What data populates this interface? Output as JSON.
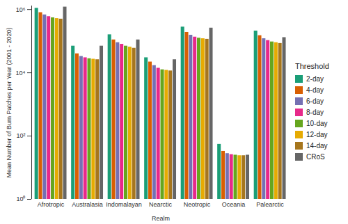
{
  "chart_data": {
    "type": "bar",
    "x_label": "Realm",
    "y_label": "Mean Number of Burn Patches per Year (2001 - 2020)",
    "legend_title": "Threshold",
    "categories": [
      "Afrotropic",
      "Australasia",
      "Indomalayan",
      "Nearctic",
      "Neotropic",
      "Oceania",
      "Palearctic"
    ],
    "series": [
      {
        "name": "2-day",
        "color": "#1b9e77",
        "values": [
          1100000,
          70000,
          160000,
          30000,
          280000,
          55,
          210000
        ]
      },
      {
        "name": "4-day",
        "color": "#d95f02",
        "values": [
          800000,
          40000,
          110000,
          22000,
          190000,
          33,
          150000
        ]
      },
      {
        "name": "6-day",
        "color": "#7570b3",
        "values": [
          680000,
          33000,
          90000,
          17000,
          155000,
          28,
          120000
        ]
      },
      {
        "name": "8-day",
        "color": "#e7298a",
        "values": [
          600000,
          30000,
          80000,
          14000,
          135000,
          26,
          105000
        ]
      },
      {
        "name": "10-day",
        "color": "#66a61e",
        "values": [
          550000,
          28000,
          70000,
          12500,
          125000,
          25,
          95000
        ]
      },
      {
        "name": "12-day",
        "color": "#e6ab02",
        "values": [
          520000,
          27000,
          65000,
          12000,
          120000,
          24,
          90000
        ]
      },
      {
        "name": "14-day",
        "color": "#a6761d",
        "values": [
          500000,
          26000,
          60000,
          11500,
          115000,
          24,
          85000
        ]
      },
      {
        "name": "CRoS",
        "color": "#666666",
        "values": [
          1200000,
          70000,
          110000,
          26000,
          260000,
          25,
          130000
        ]
      }
    ],
    "log": "y",
    "ylim": [
      1,
      1300000
    ],
    "yticks": [
      {
        "value": 1,
        "label": "10⁰"
      },
      {
        "value": 100,
        "label": "10²"
      },
      {
        "value": 10000,
        "label": "10⁴"
      },
      {
        "value": 1000000,
        "label": "10⁶"
      }
    ],
    "grid": false,
    "legend": "right"
  }
}
